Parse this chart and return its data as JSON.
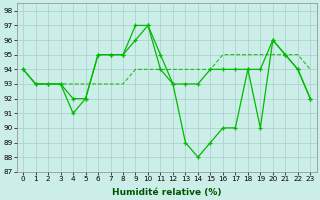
{
  "xlabel": "Humidité relative (%)",
  "background_color": "#cceee8",
  "grid_color": "#aacccc",
  "line_color": "#00bb00",
  "ylim": [
    87,
    98.5
  ],
  "xlim": [
    -0.5,
    23.5
  ],
  "yticks": [
    87,
    88,
    89,
    90,
    91,
    92,
    93,
    94,
    95,
    96,
    97,
    98
  ],
  "xticks": [
    0,
    1,
    2,
    3,
    4,
    5,
    6,
    7,
    8,
    9,
    10,
    11,
    12,
    13,
    14,
    15,
    16,
    17,
    18,
    19,
    20,
    21,
    22,
    23
  ],
  "line_spiky_x": [
    0,
    1,
    2,
    3,
    4,
    5,
    6,
    7,
    8,
    9,
    10,
    11,
    12,
    13,
    14,
    15,
    16,
    17,
    18,
    19,
    20,
    21,
    22,
    23
  ],
  "line_spiky_y": [
    94,
    93,
    93,
    93,
    92,
    92,
    95,
    95,
    95,
    97,
    97,
    95,
    93,
    89,
    88,
    89,
    90,
    90,
    94,
    90,
    96,
    95,
    94,
    92
  ],
  "line_zigzag_x": [
    0,
    1,
    2,
    3,
    4,
    5,
    6,
    7,
    8,
    9,
    10,
    11,
    12,
    13,
    14,
    15,
    16,
    17,
    18,
    19,
    20,
    21,
    22,
    23
  ],
  "line_zigzag_y": [
    94,
    93,
    93,
    93,
    91,
    92,
    95,
    95,
    95,
    96,
    97,
    94,
    93,
    93,
    93,
    94,
    94,
    94,
    94,
    94,
    96,
    95,
    94,
    92
  ],
  "line_flat_x": [
    0,
    1,
    2,
    3,
    4,
    5,
    6,
    7,
    8,
    9,
    10,
    11,
    12,
    13,
    14,
    15,
    16,
    17,
    18,
    19,
    20,
    21,
    22,
    23
  ],
  "line_flat_y": [
    94,
    93,
    93,
    93,
    93,
    93,
    93,
    93,
    93,
    94,
    94,
    94,
    94,
    94,
    94,
    94,
    95,
    95,
    95,
    95,
    95,
    95,
    95,
    94
  ]
}
